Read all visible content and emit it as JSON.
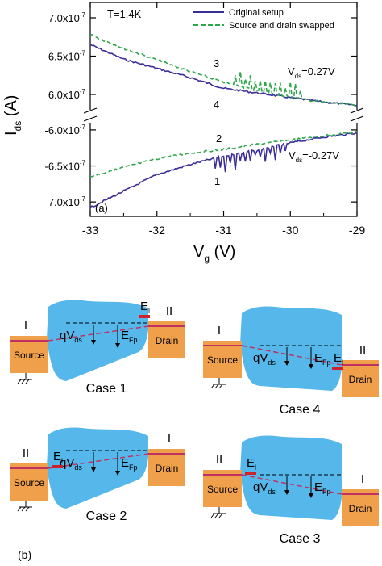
{
  "panel_a": {
    "label": "(a)",
    "temperature": "T=1.4K",
    "legend": {
      "original": "Original setup",
      "swapped": "Source and drain swapped"
    },
    "ylabel_main": "I",
    "ylabel_sub": "ds",
    "ylabel_unit": " (A)",
    "xlabel_main": "V",
    "xlabel_sub": "g",
    "xlabel_unit": " (V)",
    "x_ticks": [
      "-33",
      "-32",
      "-31",
      "-30",
      "-29"
    ],
    "y_ticks_top": [
      {
        "mant": "7.0x10",
        "exp": "-7"
      },
      {
        "mant": "6.5x10",
        "exp": "-7"
      },
      {
        "mant": "6.0x10",
        "exp": "-7"
      }
    ],
    "y_ticks_bottom": [
      {
        "mant": "-6.0x10",
        "exp": "-7"
      },
      {
        "mant": "-6.5x10",
        "exp": "-7"
      },
      {
        "mant": "-7.0x10",
        "exp": "-7"
      }
    ],
    "curve_numbers": [
      "3",
      "4",
      "2",
      "1"
    ],
    "vds_pos": {
      "main": "V",
      "sub": "ds",
      "value": "=0.27V"
    },
    "vds_neg": {
      "main": "V",
      "sub": "ds",
      "value": "=-0.27V"
    },
    "colors": {
      "original": "#3a2f9a",
      "swapped": "#2ea64a"
    }
  },
  "chart_data": {
    "type": "line",
    "xlabel": "Vg (V)",
    "ylabel": "Ids (A)",
    "xlim": [
      -33,
      -29
    ],
    "ylim_top": [
      5.8e-07,
      7.2e-07
    ],
    "ylim_bottom": [
      -7.2e-07,
      -5.9e-07
    ],
    "series": [
      {
        "name": "Original setup",
        "curve": "4",
        "x": [
          -33,
          -32.5,
          -32,
          -31.5,
          -31,
          -30.5,
          -30,
          -29.5,
          -29
        ],
        "y": [
          6.65e-07,
          6.46e-07,
          6.34e-07,
          6.22e-07,
          6.08e-07,
          6.02e-07,
          5.96e-07,
          5.9e-07,
          5.86e-07
        ]
      },
      {
        "name": "Source and drain swapped",
        "curve": "3",
        "x": [
          -33,
          -32.5,
          -32,
          -31.5,
          -31,
          -30.5,
          -30,
          -29.5,
          -29
        ],
        "y": [
          6.78e-07,
          6.6e-07,
          6.45e-07,
          6.3e-07,
          6.16e-07,
          6.05e-07,
          5.96e-07,
          5.9e-07,
          5.86e-07
        ]
      },
      {
        "name": "Original setup",
        "curve": "1",
        "x": [
          -33,
          -32.5,
          -32,
          -31.5,
          -31,
          -30.5,
          -30,
          -29.5,
          -29
        ],
        "y": [
          -7.08e-07,
          -6.85e-07,
          -6.62e-07,
          -6.48e-07,
          -6.36e-07,
          -6.28e-07,
          -6.18e-07,
          -6.1e-07,
          -6.04e-07
        ]
      },
      {
        "name": "Source and drain swapped",
        "curve": "2",
        "x": [
          -33,
          -32.5,
          -32,
          -31.5,
          -31,
          -30.5,
          -30,
          -29.5,
          -29
        ],
        "y": [
          -6.65e-07,
          -6.52e-07,
          -6.4e-07,
          -6.32e-07,
          -6.27e-07,
          -6.2e-07,
          -6.14e-07,
          -6.08e-07,
          -6.03e-07
        ]
      }
    ]
  },
  "panel_b": {
    "label": "(b)",
    "colors": {
      "region": "#55b7ea",
      "contact": "#f0a04a",
      "level": "#c03060",
      "label_red": "#d0202a"
    },
    "cases": [
      {
        "title": "Case 1",
        "left_roman": "I",
        "right_roman": "II",
        "left_name": "Source",
        "right_name": "Drain",
        "el": "E",
        "el_sub": "l",
        "qv": "qV",
        "qv_sub": "ds",
        "efp": "E",
        "efp_sub": "Fp"
      },
      {
        "title": "Case 4",
        "left_roman": "I",
        "right_roman": "II",
        "left_name": "Source",
        "right_name": "Drain",
        "el": "E",
        "el_sub": "l",
        "qv": "qV",
        "qv_sub": "ds",
        "efp": "E",
        "efp_sub": "Fp"
      },
      {
        "title": "Case 2",
        "left_roman": "II",
        "right_roman": "I",
        "left_name": "Source",
        "right_name": "Drain",
        "el": "E",
        "el_sub": "l",
        "qv": "qV",
        "qv_sub": "ds",
        "efp": "E",
        "efp_sub": "Fp"
      },
      {
        "title": "Case 3",
        "left_roman": "II",
        "right_roman": "I",
        "left_name": "Source",
        "right_name": "Drain",
        "el": "E",
        "el_sub": "l",
        "qv": "qV",
        "qv_sub": "ds",
        "efp": "E",
        "efp_sub": "Fp"
      }
    ]
  }
}
